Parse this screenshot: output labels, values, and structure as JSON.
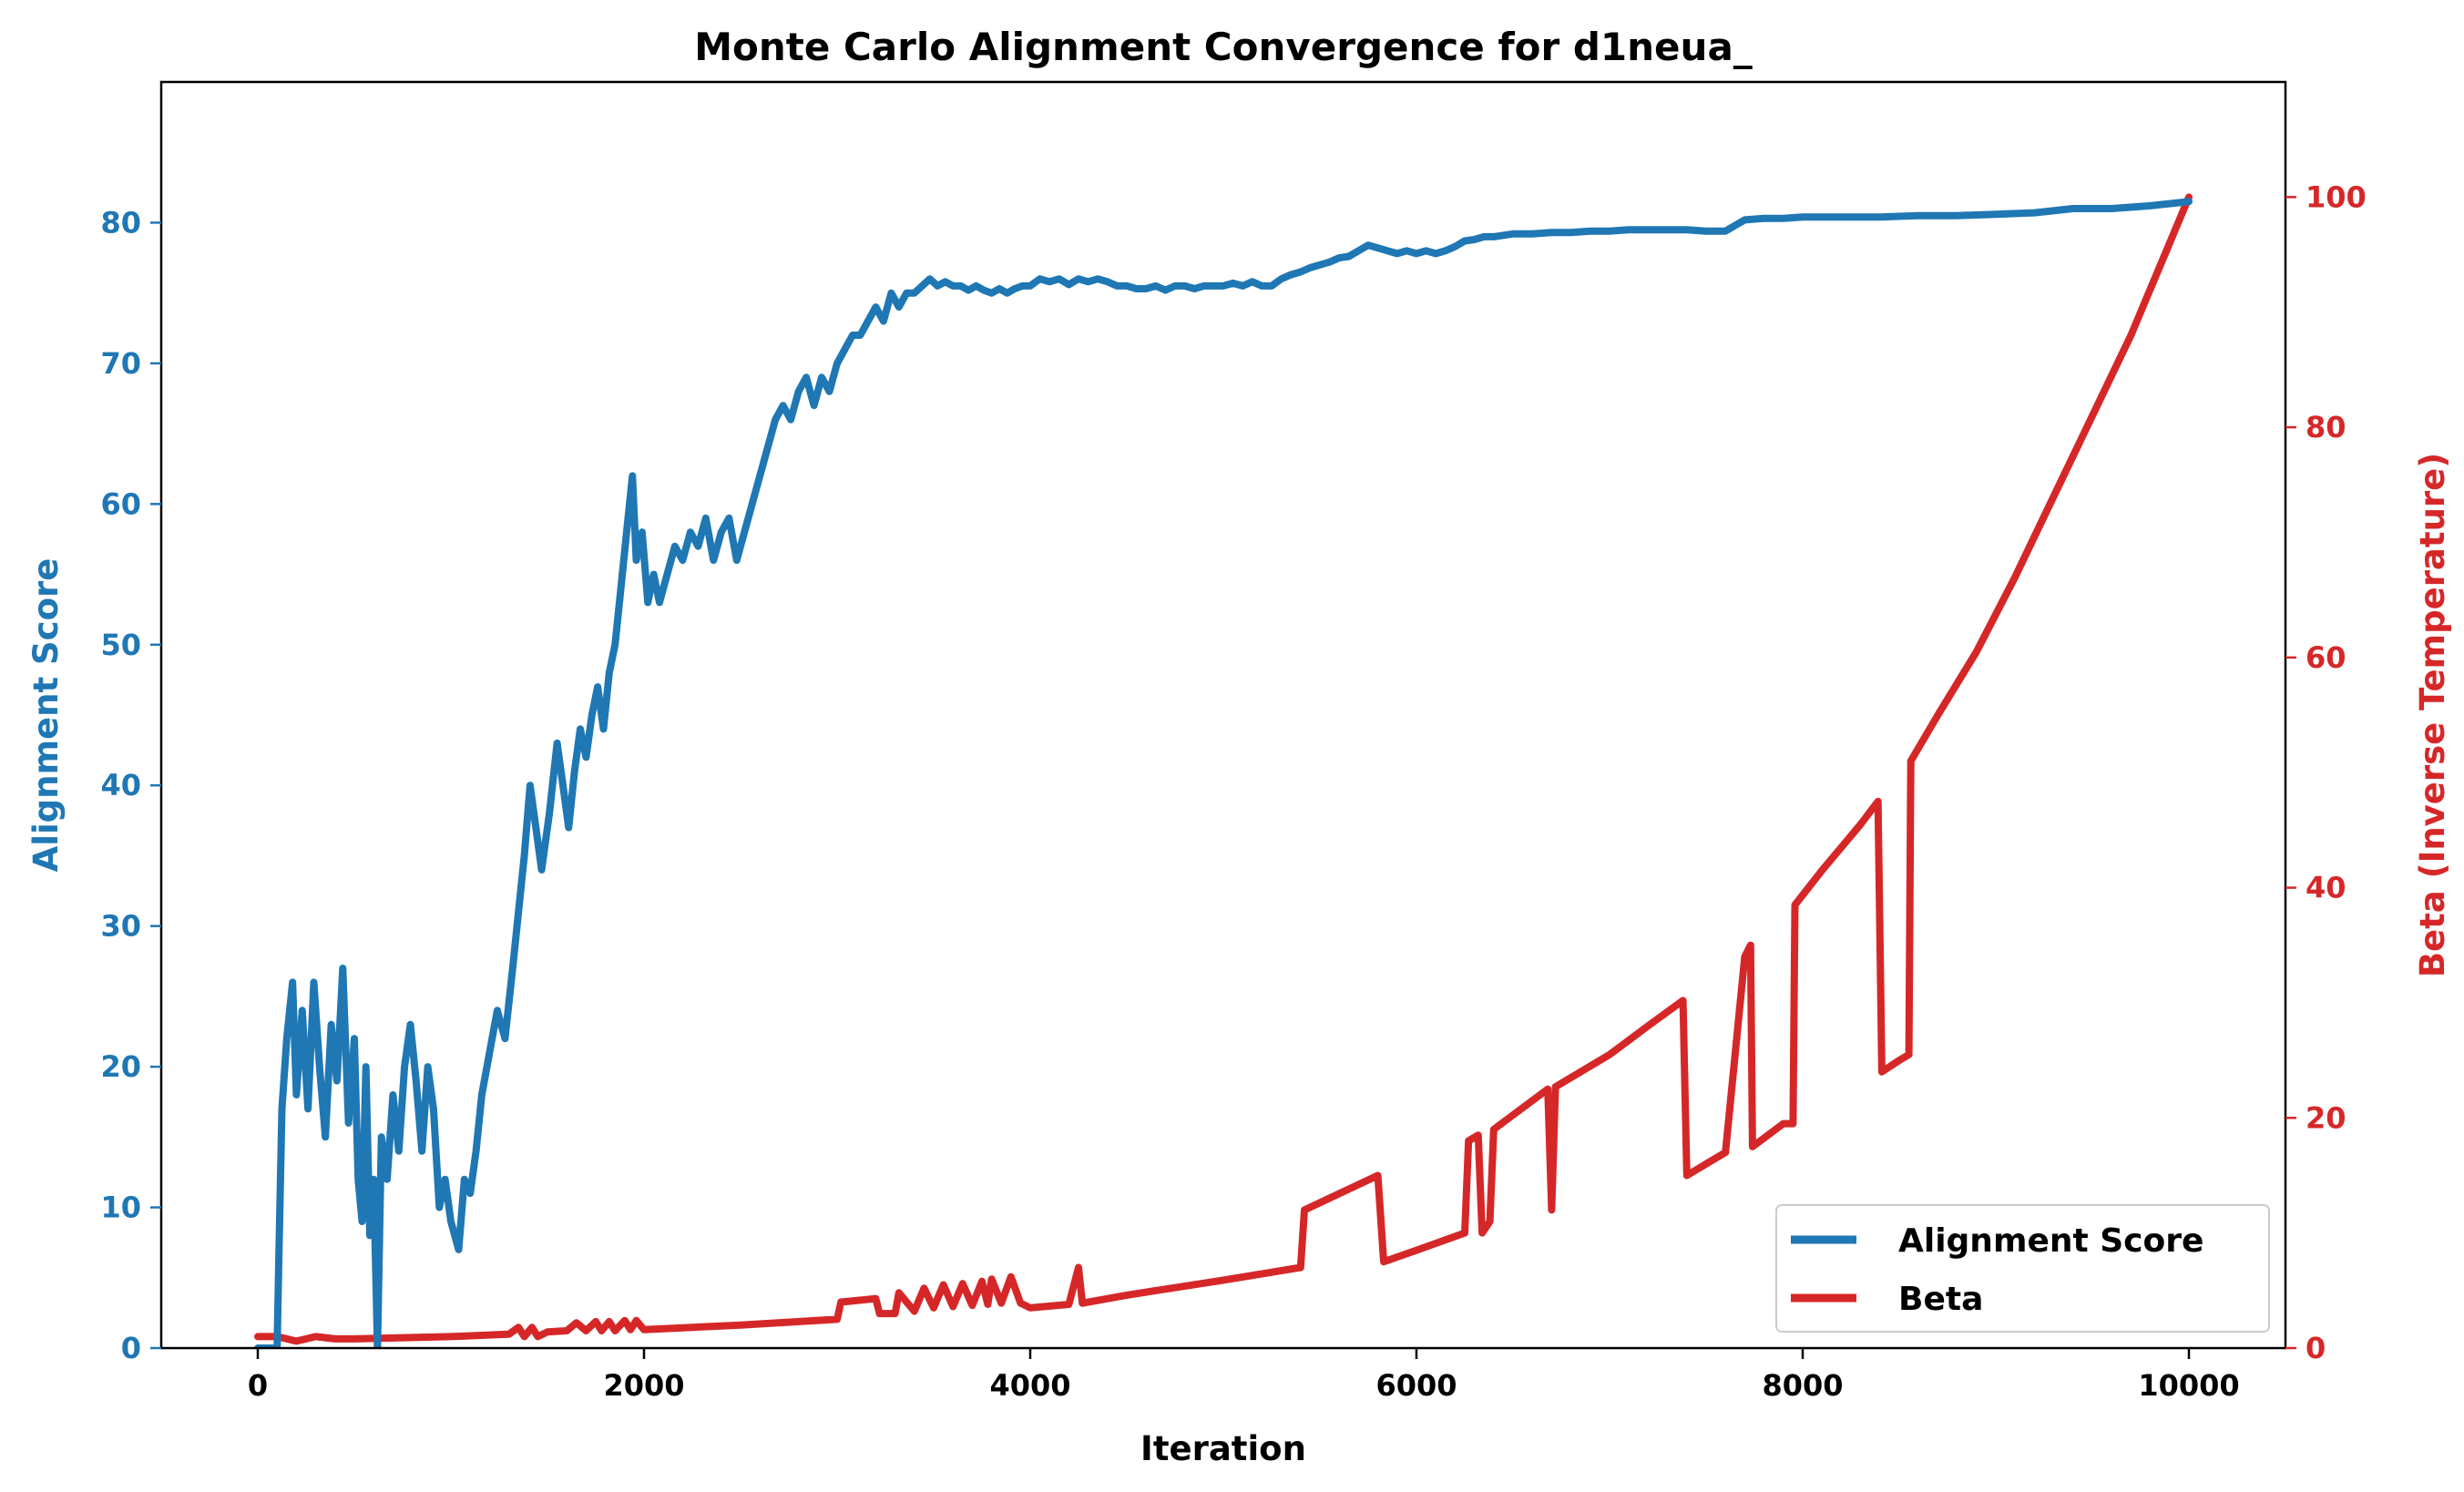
{
  "chart_data": {
    "type": "line",
    "title": "Monte Carlo Alignment Convergence for d1neua_",
    "xlabel": "Iteration",
    "ylabel": "Alignment Score",
    "y2label": "Beta (Inverse Temperature)",
    "xlim": [
      -500,
      10500
    ],
    "ylim": [
      0,
      90
    ],
    "y2lim": [
      0,
      110
    ],
    "xticks": [
      0,
      2000,
      4000,
      6000,
      8000,
      10000
    ],
    "yticks": [
      0,
      10,
      20,
      30,
      40,
      50,
      60,
      70,
      80
    ],
    "y2ticks": [
      0,
      20,
      40,
      60,
      80,
      100
    ],
    "legend_position": "lower-right",
    "grid": false,
    "colors": {
      "score": "#1f77b4",
      "beta": "#d62728",
      "axis": "#000000"
    },
    "series": [
      {
        "name": "Alignment Score",
        "axis": "left",
        "points": [
          [
            0,
            0
          ],
          [
            100,
            0
          ],
          [
            110,
            7
          ],
          [
            125,
            17
          ],
          [
            150,
            22
          ],
          [
            180,
            26
          ],
          [
            200,
            18
          ],
          [
            230,
            24
          ],
          [
            260,
            17
          ],
          [
            290,
            26
          ],
          [
            320,
            20
          ],
          [
            350,
            15
          ],
          [
            380,
            23
          ],
          [
            410,
            19
          ],
          [
            440,
            27
          ],
          [
            470,
            16
          ],
          [
            500,
            22
          ],
          [
            520,
            12
          ],
          [
            540,
            9
          ],
          [
            560,
            20
          ],
          [
            580,
            8
          ],
          [
            600,
            12
          ],
          [
            620,
            0
          ],
          [
            640,
            15
          ],
          [
            670,
            12
          ],
          [
            700,
            18
          ],
          [
            730,
            14
          ],
          [
            760,
            20
          ],
          [
            790,
            23
          ],
          [
            820,
            19
          ],
          [
            850,
            14
          ],
          [
            880,
            20
          ],
          [
            910,
            17
          ],
          [
            940,
            10
          ],
          [
            970,
            12
          ],
          [
            1000,
            9
          ],
          [
            1040,
            7
          ],
          [
            1070,
            12
          ],
          [
            1100,
            11
          ],
          [
            1130,
            14
          ],
          [
            1160,
            18
          ],
          [
            1200,
            21
          ],
          [
            1240,
            24
          ],
          [
            1280,
            22
          ],
          [
            1320,
            27
          ],
          [
            1350,
            31
          ],
          [
            1380,
            35
          ],
          [
            1410,
            40
          ],
          [
            1440,
            37
          ],
          [
            1470,
            34
          ],
          [
            1510,
            38
          ],
          [
            1550,
            43
          ],
          [
            1580,
            40
          ],
          [
            1610,
            37
          ],
          [
            1640,
            41
          ],
          [
            1670,
            44
          ],
          [
            1700,
            42
          ],
          [
            1730,
            45
          ],
          [
            1760,
            47
          ],
          [
            1790,
            44
          ],
          [
            1820,
            48
          ],
          [
            1850,
            50
          ],
          [
            1880,
            54
          ],
          [
            1910,
            58
          ],
          [
            1940,
            62
          ],
          [
            1960,
            56
          ],
          [
            1990,
            58
          ],
          [
            2020,
            53
          ],
          [
            2050,
            55
          ],
          [
            2080,
            53
          ],
          [
            2120,
            55
          ],
          [
            2160,
            57
          ],
          [
            2200,
            56
          ],
          [
            2240,
            58
          ],
          [
            2280,
            57
          ],
          [
            2320,
            59
          ],
          [
            2360,
            56
          ],
          [
            2400,
            58
          ],
          [
            2440,
            59
          ],
          [
            2480,
            56
          ],
          [
            2520,
            58
          ],
          [
            2560,
            60
          ],
          [
            2600,
            62
          ],
          [
            2640,
            64
          ],
          [
            2680,
            66
          ],
          [
            2720,
            67
          ],
          [
            2760,
            66
          ],
          [
            2800,
            68
          ],
          [
            2840,
            69
          ],
          [
            2880,
            67
          ],
          [
            2920,
            69
          ],
          [
            2960,
            68
          ],
          [
            3000,
            70
          ],
          [
            3040,
            71
          ],
          [
            3080,
            72
          ],
          [
            3120,
            72
          ],
          [
            3160,
            73
          ],
          [
            3200,
            74
          ],
          [
            3240,
            73
          ],
          [
            3280,
            75
          ],
          [
            3320,
            74
          ],
          [
            3360,
            75
          ],
          [
            3400,
            75
          ],
          [
            3440,
            75.5
          ],
          [
            3480,
            76
          ],
          [
            3520,
            75.5
          ],
          [
            3560,
            75.8
          ],
          [
            3600,
            75.5
          ],
          [
            3640,
            75.5
          ],
          [
            3680,
            75.2
          ],
          [
            3720,
            75.5
          ],
          [
            3760,
            75.2
          ],
          [
            3800,
            75
          ],
          [
            3840,
            75.3
          ],
          [
            3880,
            75
          ],
          [
            3920,
            75.3
          ],
          [
            3960,
            75.5
          ],
          [
            4000,
            75.5
          ],
          [
            4050,
            76
          ],
          [
            4100,
            75.8
          ],
          [
            4150,
            76
          ],
          [
            4200,
            75.6
          ],
          [
            4250,
            76
          ],
          [
            4300,
            75.8
          ],
          [
            4350,
            76
          ],
          [
            4400,
            75.8
          ],
          [
            4450,
            75.5
          ],
          [
            4500,
            75.5
          ],
          [
            4550,
            75.3
          ],
          [
            4600,
            75.3
          ],
          [
            4650,
            75.5
          ],
          [
            4700,
            75.2
          ],
          [
            4750,
            75.5
          ],
          [
            4800,
            75.5
          ],
          [
            4850,
            75.3
          ],
          [
            4900,
            75.5
          ],
          [
            4950,
            75.5
          ],
          [
            5000,
            75.5
          ],
          [
            5050,
            75.7
          ],
          [
            5100,
            75.5
          ],
          [
            5150,
            75.8
          ],
          [
            5200,
            75.5
          ],
          [
            5250,
            75.5
          ],
          [
            5300,
            76
          ],
          [
            5350,
            76.3
          ],
          [
            5400,
            76.5
          ],
          [
            5450,
            76.8
          ],
          [
            5500,
            77
          ],
          [
            5550,
            77.2
          ],
          [
            5600,
            77.5
          ],
          [
            5650,
            77.6
          ],
          [
            5700,
            78
          ],
          [
            5750,
            78.4
          ],
          [
            5800,
            78.2
          ],
          [
            5850,
            78
          ],
          [
            5900,
            77.8
          ],
          [
            5950,
            78
          ],
          [
            6000,
            77.8
          ],
          [
            6050,
            78
          ],
          [
            6100,
            77.8
          ],
          [
            6150,
            78
          ],
          [
            6200,
            78.3
          ],
          [
            6250,
            78.7
          ],
          [
            6300,
            78.8
          ],
          [
            6350,
            79
          ],
          [
            6400,
            79
          ],
          [
            6500,
            79.2
          ],
          [
            6600,
            79.2
          ],
          [
            6700,
            79.3
          ],
          [
            6800,
            79.3
          ],
          [
            6900,
            79.4
          ],
          [
            7000,
            79.4
          ],
          [
            7100,
            79.5
          ],
          [
            7200,
            79.5
          ],
          [
            7300,
            79.5
          ],
          [
            7400,
            79.5
          ],
          [
            7500,
            79.4
          ],
          [
            7600,
            79.4
          ],
          [
            7700,
            80.2
          ],
          [
            7800,
            80.3
          ],
          [
            7900,
            80.3
          ],
          [
            8000,
            80.4
          ],
          [
            8200,
            80.4
          ],
          [
            8400,
            80.4
          ],
          [
            8600,
            80.5
          ],
          [
            8800,
            80.5
          ],
          [
            9000,
            80.6
          ],
          [
            9200,
            80.7
          ],
          [
            9400,
            81
          ],
          [
            9600,
            81
          ],
          [
            9800,
            81.2
          ],
          [
            10000,
            81.5
          ]
        ]
      },
      {
        "name": "Beta",
        "axis": "right",
        "points": [
          [
            0,
            1
          ],
          [
            100,
            1
          ],
          [
            200,
            0.6
          ],
          [
            300,
            1
          ],
          [
            400,
            0.8
          ],
          [
            500,
            0.8
          ],
          [
            1000,
            1
          ],
          [
            1300,
            1.2
          ],
          [
            1350,
            1.8
          ],
          [
            1380,
            1
          ],
          [
            1420,
            1.8
          ],
          [
            1450,
            1
          ],
          [
            1500,
            1.4
          ],
          [
            1600,
            1.5
          ],
          [
            1650,
            2.2
          ],
          [
            1700,
            1.5
          ],
          [
            1750,
            2.3
          ],
          [
            1780,
            1.5
          ],
          [
            1820,
            2.3
          ],
          [
            1850,
            1.5
          ],
          [
            1900,
            2.4
          ],
          [
            1930,
            1.6
          ],
          [
            1960,
            2.4
          ],
          [
            2000,
            1.6
          ],
          [
            2500,
            2
          ],
          [
            3000,
            2.5
          ],
          [
            3020,
            4
          ],
          [
            3200,
            4.3
          ],
          [
            3220,
            3
          ],
          [
            3300,
            3
          ],
          [
            3320,
            4.8
          ],
          [
            3400,
            3.2
          ],
          [
            3450,
            5.2
          ],
          [
            3500,
            3.5
          ],
          [
            3550,
            5.5
          ],
          [
            3600,
            3.6
          ],
          [
            3650,
            5.6
          ],
          [
            3700,
            3.7
          ],
          [
            3750,
            5.8
          ],
          [
            3780,
            3.8
          ],
          [
            3800,
            6
          ],
          [
            3850,
            3.9
          ],
          [
            3900,
            6.2
          ],
          [
            3950,
            3.9
          ],
          [
            4000,
            3.5
          ],
          [
            4200,
            3.8
          ],
          [
            4250,
            7
          ],
          [
            4270,
            3.9
          ],
          [
            4500,
            4.6
          ],
          [
            5000,
            5.9
          ],
          [
            5400,
            7
          ],
          [
            5420,
            12
          ],
          [
            5800,
            15
          ],
          [
            5830,
            7.5
          ],
          [
            6000,
            8.5
          ],
          [
            6250,
            10
          ],
          [
            6270,
            18
          ],
          [
            6320,
            18.5
          ],
          [
            6340,
            10
          ],
          [
            6380,
            11
          ],
          [
            6400,
            19
          ],
          [
            6600,
            21.5
          ],
          [
            6680,
            22.5
          ],
          [
            6700,
            12
          ],
          [
            6720,
            22.7
          ],
          [
            7000,
            25.5
          ],
          [
            7200,
            28
          ],
          [
            7380,
            30.2
          ],
          [
            7400,
            15
          ],
          [
            7500,
            16
          ],
          [
            7600,
            17
          ],
          [
            7700,
            34
          ],
          [
            7730,
            35
          ],
          [
            7740,
            17.5
          ],
          [
            7900,
            19.5
          ],
          [
            7950,
            19.5
          ],
          [
            7960,
            38.5
          ],
          [
            8100,
            41.5
          ],
          [
            8200,
            43.5
          ],
          [
            8300,
            45.5
          ],
          [
            8390,
            47.5
          ],
          [
            8410,
            24
          ],
          [
            8500,
            25
          ],
          [
            8550,
            25.5
          ],
          [
            8560,
            51
          ],
          [
            8700,
            55
          ],
          [
            8900,
            60.5
          ],
          [
            9100,
            67
          ],
          [
            9300,
            74
          ],
          [
            9500,
            81
          ],
          [
            9700,
            88
          ],
          [
            9900,
            96
          ],
          [
            10000,
            100
          ]
        ]
      }
    ]
  }
}
